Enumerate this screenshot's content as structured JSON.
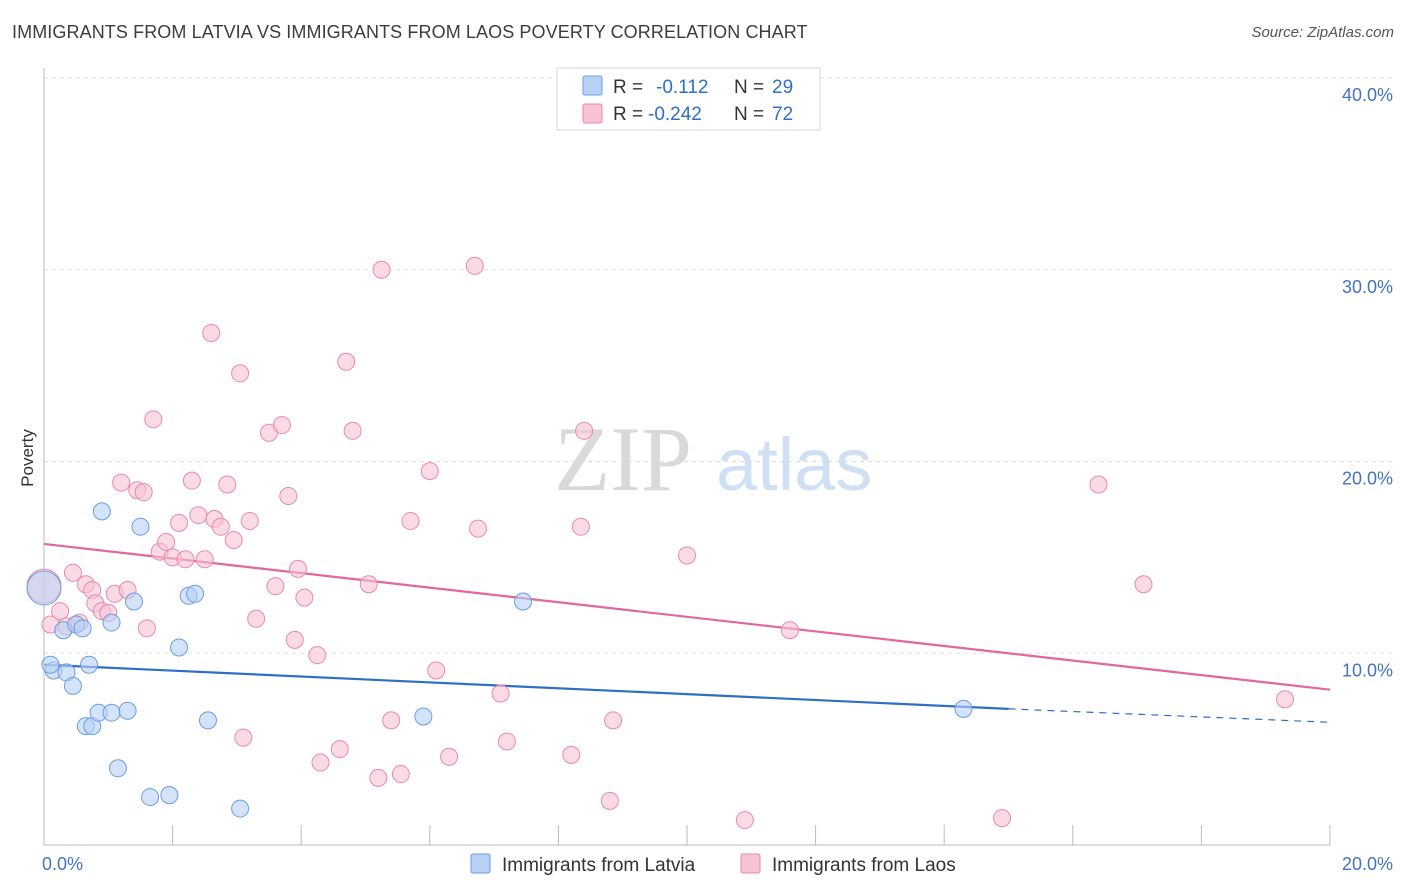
{
  "title": "IMMIGRANTS FROM LATVIA VS IMMIGRANTS FROM LAOS POVERTY CORRELATION CHART",
  "source": "Source: ZipAtlas.com",
  "watermark": {
    "zip": "ZIP",
    "atlas": "atlas"
  },
  "colors": {
    "latvia_fill": "#b7d1f5",
    "latvia_stroke": "#6a9ee0",
    "latvia_line": "#2d6fc6",
    "laos_fill": "#f7c3d4",
    "laos_stroke": "#e98aaa",
    "laos_line": "#e2679a",
    "tick_label": "#4472c4",
    "grid": "#dddddd"
  },
  "legend": {
    "rows": [
      {
        "r_label": "R =",
        "r_value": "-0.112",
        "n_label": "N =",
        "n_value": "29"
      },
      {
        "r_label": "R =",
        "r_value": "-0.242",
        "n_label": "N =",
        "n_value": "72"
      }
    ]
  },
  "chart_data": {
    "type": "scatter",
    "title": "IMMIGRANTS FROM LATVIA VS IMMIGRANTS FROM LAOS POVERTY CORRELATION CHART",
    "xlabel": "",
    "ylabel": "Poverty",
    "xlim": [
      0,
      20
    ],
    "ylim": [
      0,
      40
    ],
    "x_tick_labels": [
      "0.0%",
      "20.0%"
    ],
    "y_ticks": [
      10,
      20,
      30,
      40
    ],
    "y_tick_labels": [
      "10.0%",
      "20.0%",
      "30.0%",
      "40.0%"
    ],
    "grid": "horizontal dashed",
    "legend_placement": "top-center",
    "series": [
      {
        "name": "Immigrants from Latvia",
        "r": -0.112,
        "n": 29,
        "trend": {
          "x0": 0,
          "y0": 9.4,
          "x1": 15,
          "y1": 7.1,
          "dashed_to": 20,
          "dashed_y": 6.4
        },
        "points": [
          {
            "x": 0.0,
            "y": 13.4,
            "big": true
          },
          {
            "x": 0.15,
            "y": 9.1
          },
          {
            "x": 0.1,
            "y": 9.4
          },
          {
            "x": 0.35,
            "y": 9.0
          },
          {
            "x": 0.45,
            "y": 8.3
          },
          {
            "x": 0.3,
            "y": 11.2
          },
          {
            "x": 0.5,
            "y": 11.5
          },
          {
            "x": 0.6,
            "y": 11.3
          },
          {
            "x": 0.7,
            "y": 9.4
          },
          {
            "x": 0.65,
            "y": 6.2
          },
          {
            "x": 0.75,
            "y": 6.2
          },
          {
            "x": 0.85,
            "y": 6.9
          },
          {
            "x": 1.05,
            "y": 6.9
          },
          {
            "x": 1.3,
            "y": 7.0
          },
          {
            "x": 1.15,
            "y": 4.0
          },
          {
            "x": 0.9,
            "y": 17.4
          },
          {
            "x": 1.5,
            "y": 16.6
          },
          {
            "x": 1.05,
            "y": 11.6
          },
          {
            "x": 1.4,
            "y": 12.7
          },
          {
            "x": 2.1,
            "y": 10.3
          },
          {
            "x": 2.25,
            "y": 13.0
          },
          {
            "x": 2.35,
            "y": 13.1
          },
          {
            "x": 2.55,
            "y": 6.5
          },
          {
            "x": 1.65,
            "y": 2.5
          },
          {
            "x": 1.95,
            "y": 2.6
          },
          {
            "x": 3.05,
            "y": 1.9
          },
          {
            "x": 5.9,
            "y": 6.7
          },
          {
            "x": 7.45,
            "y": 12.7
          },
          {
            "x": 14.3,
            "y": 7.1
          }
        ]
      },
      {
        "name": "Immigrants from Laos",
        "r": -0.242,
        "n": 72,
        "trend": {
          "x0": 0,
          "y0": 15.7,
          "x1": 20,
          "y1": 8.1
        },
        "points": [
          {
            "x": 0.0,
            "y": 13.5,
            "big": true
          },
          {
            "x": 0.1,
            "y": 11.5
          },
          {
            "x": 0.25,
            "y": 12.2
          },
          {
            "x": 0.35,
            "y": 11.4
          },
          {
            "x": 0.45,
            "y": 14.2
          },
          {
            "x": 0.55,
            "y": 11.6
          },
          {
            "x": 0.65,
            "y": 13.6
          },
          {
            "x": 0.75,
            "y": 13.3
          },
          {
            "x": 0.8,
            "y": 12.6
          },
          {
            "x": 0.9,
            "y": 12.2
          },
          {
            "x": 1.0,
            "y": 12.1
          },
          {
            "x": 1.1,
            "y": 13.1
          },
          {
            "x": 1.3,
            "y": 13.3
          },
          {
            "x": 1.2,
            "y": 18.9
          },
          {
            "x": 1.45,
            "y": 18.5
          },
          {
            "x": 1.55,
            "y": 18.4
          },
          {
            "x": 1.6,
            "y": 11.3
          },
          {
            "x": 1.7,
            "y": 22.2
          },
          {
            "x": 1.8,
            "y": 15.3
          },
          {
            "x": 1.9,
            "y": 15.8
          },
          {
            "x": 2.0,
            "y": 15.0
          },
          {
            "x": 2.1,
            "y": 16.8
          },
          {
            "x": 2.2,
            "y": 14.9
          },
          {
            "x": 2.3,
            "y": 19.0
          },
          {
            "x": 2.4,
            "y": 17.2
          },
          {
            "x": 2.5,
            "y": 14.9
          },
          {
            "x": 2.6,
            "y": 26.7
          },
          {
            "x": 2.65,
            "y": 17.0
          },
          {
            "x": 2.75,
            "y": 16.6
          },
          {
            "x": 2.85,
            "y": 18.8
          },
          {
            "x": 2.95,
            "y": 15.9
          },
          {
            "x": 3.05,
            "y": 24.6
          },
          {
            "x": 3.1,
            "y": 5.6
          },
          {
            "x": 3.2,
            "y": 16.9
          },
          {
            "x": 3.3,
            "y": 11.8
          },
          {
            "x": 3.5,
            "y": 21.5
          },
          {
            "x": 3.6,
            "y": 13.5
          },
          {
            "x": 3.7,
            "y": 21.9
          },
          {
            "x": 3.8,
            "y": 18.2
          },
          {
            "x": 3.9,
            "y": 10.7
          },
          {
            "x": 3.95,
            "y": 14.4
          },
          {
            "x": 4.05,
            "y": 12.9
          },
          {
            "x": 4.25,
            "y": 9.9
          },
          {
            "x": 4.3,
            "y": 4.3
          },
          {
            "x": 4.6,
            "y": 5.0
          },
          {
            "x": 4.7,
            "y": 25.2
          },
          {
            "x": 4.8,
            "y": 21.6
          },
          {
            "x": 5.05,
            "y": 13.6
          },
          {
            "x": 5.2,
            "y": 3.5
          },
          {
            "x": 5.25,
            "y": 30.0
          },
          {
            "x": 5.4,
            "y": 6.5
          },
          {
            "x": 5.55,
            "y": 3.7
          },
          {
            "x": 5.7,
            "y": 16.9
          },
          {
            "x": 6.0,
            "y": 19.5
          },
          {
            "x": 6.1,
            "y": 9.1
          },
          {
            "x": 6.3,
            "y": 4.6
          },
          {
            "x": 6.7,
            "y": 30.2
          },
          {
            "x": 6.75,
            "y": 16.5
          },
          {
            "x": 7.1,
            "y": 7.9
          },
          {
            "x": 7.2,
            "y": 5.4
          },
          {
            "x": 8.2,
            "y": 4.7
          },
          {
            "x": 8.35,
            "y": 16.6
          },
          {
            "x": 8.4,
            "y": 21.6
          },
          {
            "x": 8.8,
            "y": 2.3
          },
          {
            "x": 8.85,
            "y": 6.5
          },
          {
            "x": 10.0,
            "y": 15.1
          },
          {
            "x": 10.9,
            "y": 1.3
          },
          {
            "x": 11.6,
            "y": 11.2
          },
          {
            "x": 14.9,
            "y": 1.4
          },
          {
            "x": 16.4,
            "y": 18.8
          },
          {
            "x": 17.1,
            "y": 13.6
          },
          {
            "x": 19.3,
            "y": 7.6
          }
        ]
      }
    ]
  }
}
